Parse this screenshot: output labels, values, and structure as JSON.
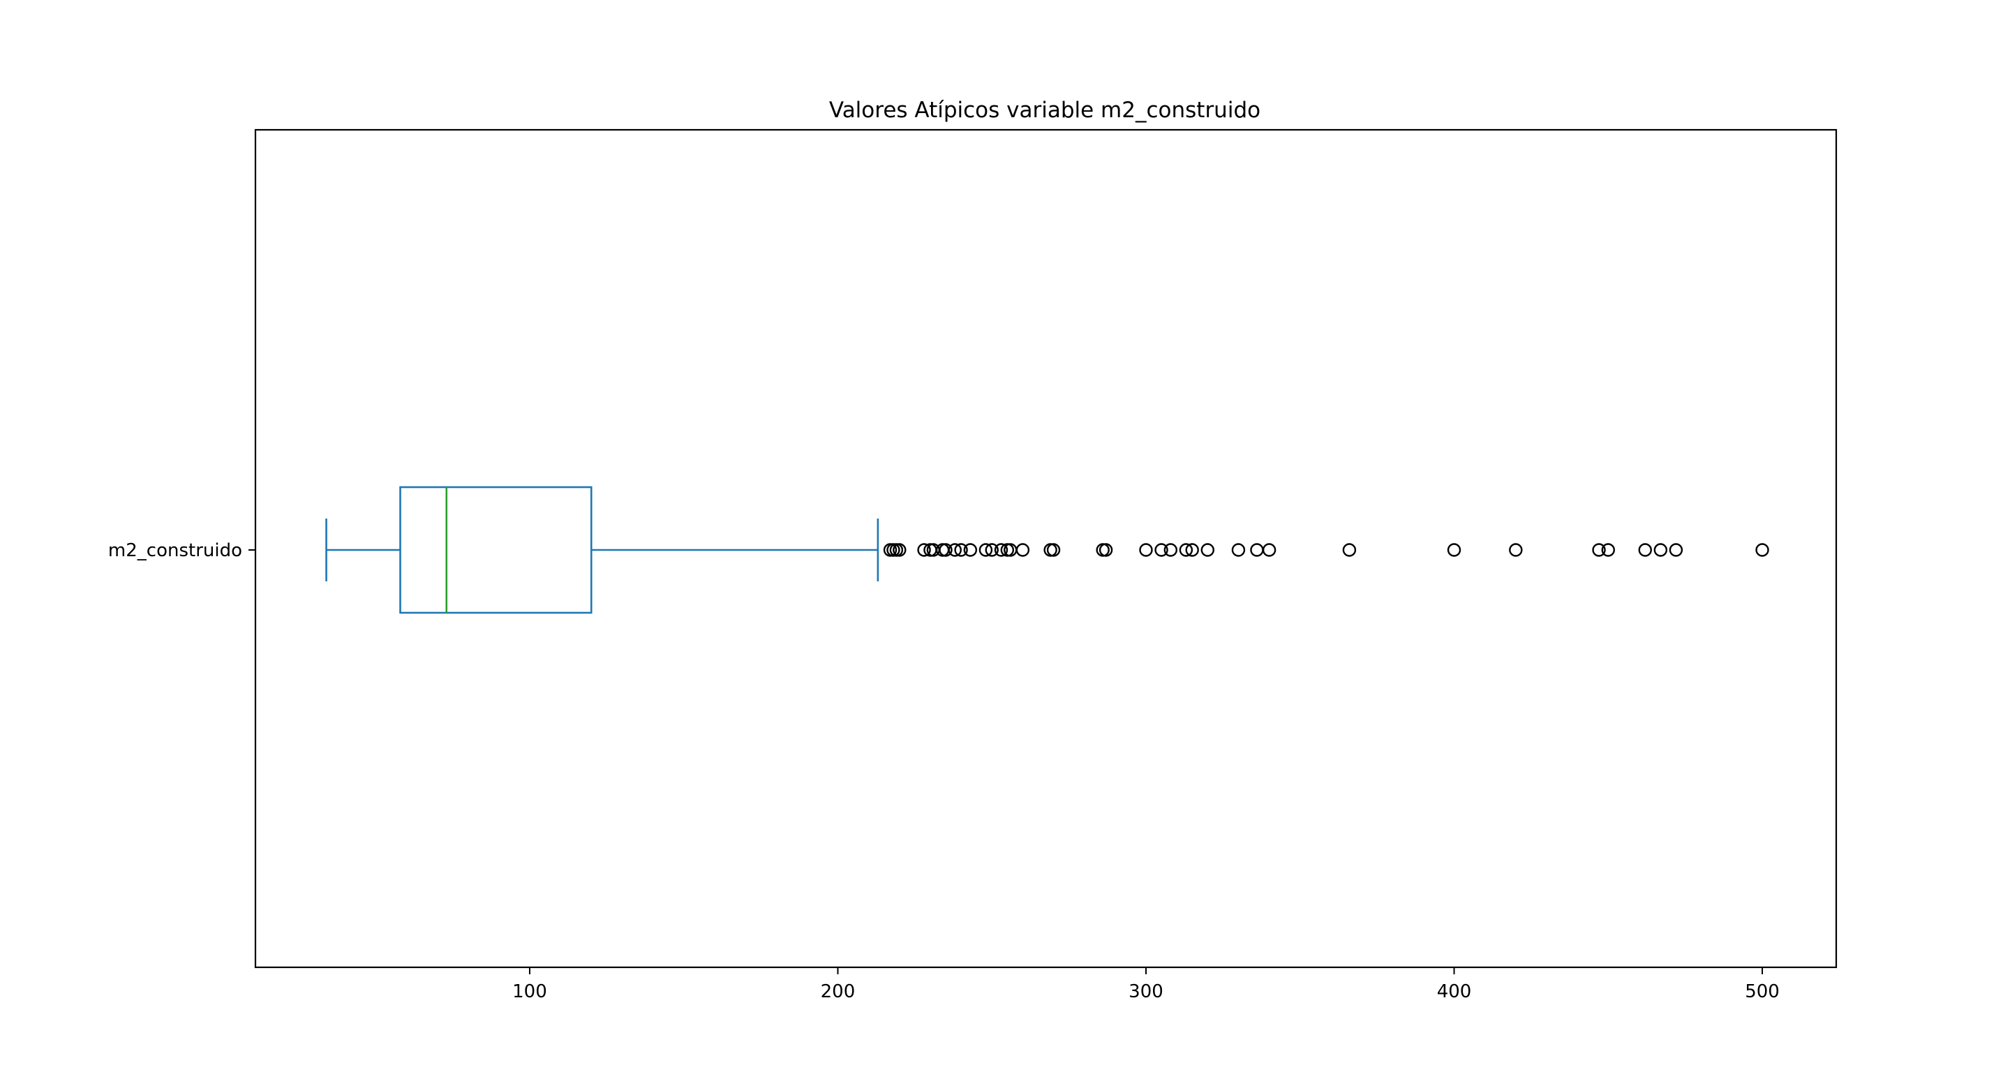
{
  "chart_data": {
    "type": "boxplot",
    "orientation": "horizontal",
    "title": "Valores Atípicos variable m2_construido",
    "xlabel": "",
    "ylabel": "",
    "categories": [
      "m2_construido"
    ],
    "xlim": [
      11,
      524
    ],
    "xticks": [
      100,
      200,
      300,
      400,
      500
    ],
    "grid": false,
    "box": {
      "whisker_low": 34,
      "q1": 58,
      "median": 73,
      "q3": 120,
      "whisker_high": 213
    },
    "outliers": [
      217,
      218,
      219,
      220,
      228,
      230,
      231,
      234,
      235,
      238,
      240,
      243,
      248,
      250,
      253,
      255,
      256,
      260,
      269,
      270,
      286,
      287,
      300,
      305,
      308,
      313,
      315,
      320,
      330,
      336,
      340,
      366,
      400,
      420,
      447,
      450,
      462,
      467,
      472,
      500
    ],
    "colors": {
      "box": "#1f77b4",
      "median": "#2ca02c",
      "outlier_edge": "#000000",
      "axes": "#000000"
    }
  }
}
